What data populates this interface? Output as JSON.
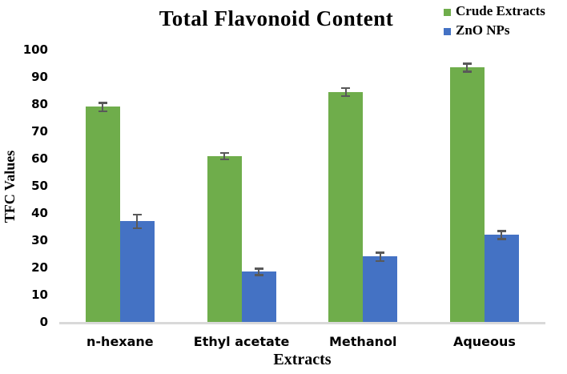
{
  "chart_data": {
    "type": "bar",
    "title": "Total Flavonoid Content",
    "xlabel": "Extracts",
    "ylabel": "TFC Values",
    "categories": [
      "n-hexane",
      "Ethyl acetate",
      "Methanol",
      "Aqueous"
    ],
    "series": [
      {
        "name": "Crude Extracts",
        "color": "#6fad4b",
        "values": [
          79,
          61,
          84.5,
          93.5
        ],
        "errors": [
          1.5,
          1.2,
          1.5,
          1.5
        ]
      },
      {
        "name": "ZnO NPs",
        "color": "#4472c4",
        "values": [
          37,
          18.5,
          24,
          32
        ],
        "errors": [
          2.5,
          1.2,
          1.5,
          1.5
        ]
      }
    ],
    "ylim": [
      0,
      100
    ],
    "ytick_step": 10,
    "grid": false,
    "legend_position": "top-right",
    "error_bar_color": "#595959",
    "axis_line_color": "#d9d9d9"
  }
}
